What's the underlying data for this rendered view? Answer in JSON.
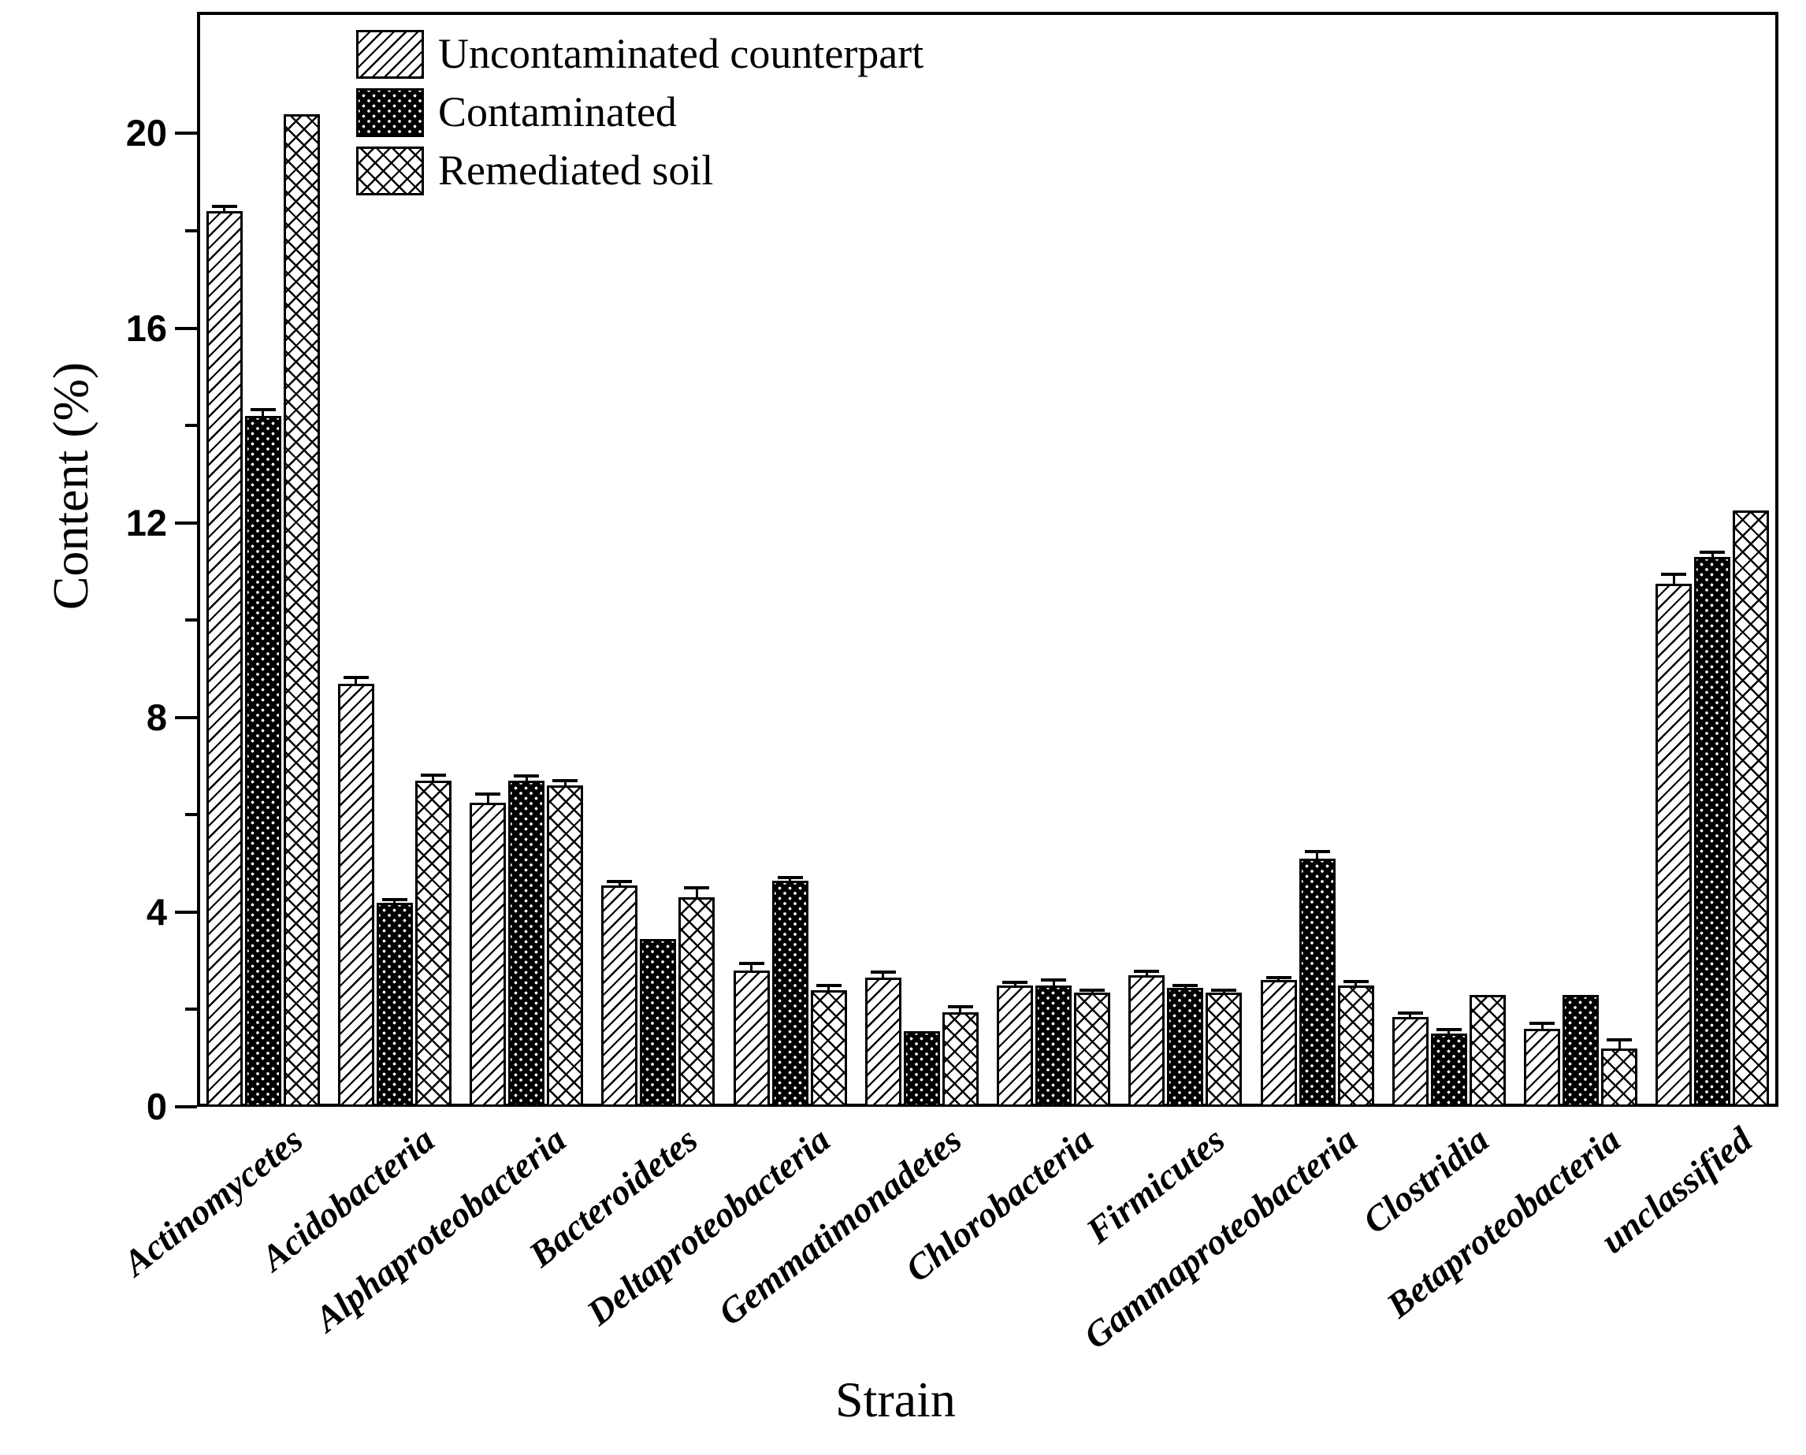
{
  "chart_data": {
    "type": "bar",
    "title": "",
    "xlabel": "Strain",
    "ylabel": "Content (%)",
    "ylim": [
      0,
      22.5
    ],
    "yticks": [
      0,
      4,
      8,
      12,
      16,
      20
    ],
    "minor_yticks": [
      2,
      6,
      10,
      14,
      18
    ],
    "grid": "off",
    "legend_position": "top-left-inside",
    "categories": [
      "Actinomycetes",
      "Acidobacteria",
      "Alphaproteobacteria",
      "Bacteroidetes",
      "Deltaproteobacteria",
      "Gemmatimonadetes",
      "Chlorobacteria",
      "Firmicutes",
      "Gammaproteobacteria",
      "Clostridia",
      "Betaproteobacteria",
      "unclassified"
    ],
    "series": [
      {
        "name": "Uncontaminated counterpart",
        "pattern": "diagonal-hatch",
        "values": [
          18.4,
          8.7,
          6.25,
          4.55,
          2.8,
          2.65,
          2.5,
          2.7,
          2.6,
          1.85,
          1.6,
          10.75
        ],
        "errors": [
          0.1,
          0.12,
          0.18,
          0.08,
          0.15,
          0.12,
          0.06,
          0.08,
          0.05,
          0.07,
          0.12,
          0.2
        ]
      },
      {
        "name": "Contaminated",
        "pattern": "black-white-dots",
        "values": [
          14.2,
          4.2,
          6.7,
          3.45,
          4.65,
          1.55,
          2.5,
          2.45,
          5.1,
          1.5,
          2.3,
          11.3
        ],
        "errors": [
          0.13,
          0.05,
          0.1,
          0,
          0.06,
          0,
          0.1,
          0.05,
          0.15,
          0.09,
          0,
          0.1
        ]
      },
      {
        "name": "Remediated soil",
        "pattern": "crosshatch",
        "values": [
          20.4,
          6.7,
          6.6,
          4.3,
          2.4,
          1.95,
          2.35,
          2.35,
          2.5,
          2.3,
          1.2,
          12.25
        ],
        "errors": [
          0,
          0.12,
          0.1,
          0.2,
          0.1,
          0.1,
          0.05,
          0.05,
          0.07,
          0,
          0.17,
          0
        ]
      }
    ]
  },
  "colors": {
    "foreground": "#000000",
    "background": "#ffffff"
  }
}
